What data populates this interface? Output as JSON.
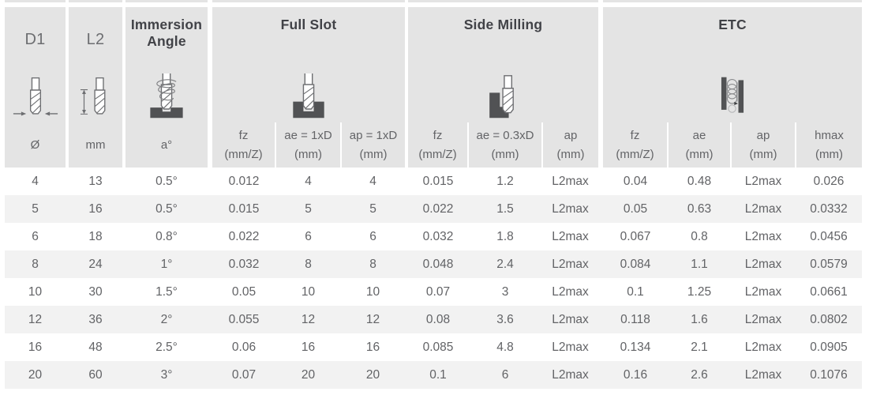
{
  "table": {
    "groups": [
      {
        "title": "D1",
        "icon": "endmill-diameter-icon",
        "columns": [
          {
            "label": "Ø",
            "unit": ""
          }
        ]
      },
      {
        "title": "L2",
        "icon": "endmill-flute-length-icon",
        "columns": [
          {
            "label": "mm",
            "unit": ""
          }
        ]
      },
      {
        "title": "Immersion Angle",
        "icon": "ramp-immersion-icon",
        "columns": [
          {
            "label": "a°",
            "unit": ""
          }
        ]
      },
      {
        "title": "Full Slot",
        "icon": "full-slot-icon",
        "columns": [
          {
            "label": "fz",
            "unit": "(mm/Z)"
          },
          {
            "label": "ae = 1xD",
            "unit": "(mm)"
          },
          {
            "label": "ap = 1xD",
            "unit": "(mm)"
          }
        ]
      },
      {
        "title": "Side Milling",
        "icon": "side-milling-icon",
        "columns": [
          {
            "label": "fz",
            "unit": "(mm/Z)"
          },
          {
            "label": "ae = 0.3xD",
            "unit": "(mm)"
          },
          {
            "label": "ap",
            "unit": "(mm)"
          }
        ]
      },
      {
        "title": "ETC",
        "icon": "trochoidal-etc-icon",
        "columns": [
          {
            "label": "fz",
            "unit": "(mm/Z)"
          },
          {
            "label": "ae",
            "unit": "(mm)"
          },
          {
            "label": "ap",
            "unit": "(mm)"
          },
          {
            "label": "hmax",
            "unit": "(mm)"
          }
        ]
      }
    ],
    "rows": [
      [
        "4",
        "13",
        "0.5°",
        "0.012",
        "4",
        "4",
        "0.015",
        "1.2",
        "L2max",
        "0.04",
        "0.48",
        "L2max",
        "0.026"
      ],
      [
        "5",
        "16",
        "0.5°",
        "0.015",
        "5",
        "5",
        "0.022",
        "1.5",
        "L2max",
        "0.05",
        "0.63",
        "L2max",
        "0.0332"
      ],
      [
        "6",
        "18",
        "0.8°",
        "0.022",
        "6",
        "6",
        "0.032",
        "1.8",
        "L2max",
        "0.067",
        "0.8",
        "L2max",
        "0.0456"
      ],
      [
        "8",
        "24",
        "1°",
        "0.032",
        "8",
        "8",
        "0.048",
        "2.4",
        "L2max",
        "0.084",
        "1.1",
        "L2max",
        "0.0579"
      ],
      [
        "10",
        "30",
        "1.5°",
        "0.05",
        "10",
        "10",
        "0.07",
        "3",
        "L2max",
        "0.1",
        "1.25",
        "L2max",
        "0.0661"
      ],
      [
        "12",
        "36",
        "2°",
        "0.055",
        "12",
        "12",
        "0.08",
        "3.6",
        "L2max",
        "0.118",
        "1.6",
        "L2max",
        "0.0802"
      ],
      [
        "16",
        "48",
        "2.5°",
        "0.06",
        "16",
        "16",
        "0.085",
        "4.8",
        "L2max",
        "0.134",
        "2.1",
        "L2max",
        "0.0905"
      ],
      [
        "20",
        "60",
        "3°",
        "0.07",
        "20",
        "20",
        "0.1",
        "6",
        "L2max",
        "0.16",
        "2.6",
        "L2max",
        "0.1076"
      ]
    ]
  },
  "colors": {
    "header_bg": "#e4e4e4",
    "row_alt_bg": "#f2f2f2",
    "body_text": "#626366",
    "title_text": "#414247",
    "workpiece": "#515254"
  },
  "chart_data": {
    "type": "table",
    "columns": [
      "Ø",
      "mm",
      "a°",
      "Full Slot fz (mm/Z)",
      "Full Slot ae = 1xD (mm)",
      "Full Slot ap = 1xD (mm)",
      "Side Milling fz (mm/Z)",
      "Side Milling ae = 0.3xD (mm)",
      "Side Milling ap (mm)",
      "ETC fz (mm/Z)",
      "ETC ae (mm)",
      "ETC ap (mm)",
      "ETC hmax (mm)"
    ],
    "rows": [
      [
        "4",
        "13",
        "0.5°",
        "0.012",
        "4",
        "4",
        "0.015",
        "1.2",
        "L2max",
        "0.04",
        "0.48",
        "L2max",
        "0.026"
      ],
      [
        "5",
        "16",
        "0.5°",
        "0.015",
        "5",
        "5",
        "0.022",
        "1.5",
        "L2max",
        "0.05",
        "0.63",
        "L2max",
        "0.0332"
      ],
      [
        "6",
        "18",
        "0.8°",
        "0.022",
        "6",
        "6",
        "0.032",
        "1.8",
        "L2max",
        "0.067",
        "0.8",
        "L2max",
        "0.0456"
      ],
      [
        "8",
        "24",
        "1°",
        "0.032",
        "8",
        "8",
        "0.048",
        "2.4",
        "L2max",
        "0.084",
        "1.1",
        "L2max",
        "0.0579"
      ],
      [
        "10",
        "30",
        "1.5°",
        "0.05",
        "10",
        "10",
        "0.07",
        "3",
        "L2max",
        "0.1",
        "1.25",
        "L2max",
        "0.0661"
      ],
      [
        "12",
        "36",
        "2°",
        "0.055",
        "12",
        "12",
        "0.08",
        "3.6",
        "L2max",
        "0.118",
        "1.6",
        "L2max",
        "0.0802"
      ],
      [
        "16",
        "48",
        "2.5°",
        "0.06",
        "16",
        "16",
        "0.085",
        "4.8",
        "L2max",
        "0.134",
        "2.1",
        "L2max",
        "0.0905"
      ],
      [
        "20",
        "60",
        "3°",
        "0.07",
        "20",
        "20",
        "0.1",
        "6",
        "L2max",
        "0.16",
        "2.6",
        "L2max",
        "0.1076"
      ]
    ]
  }
}
